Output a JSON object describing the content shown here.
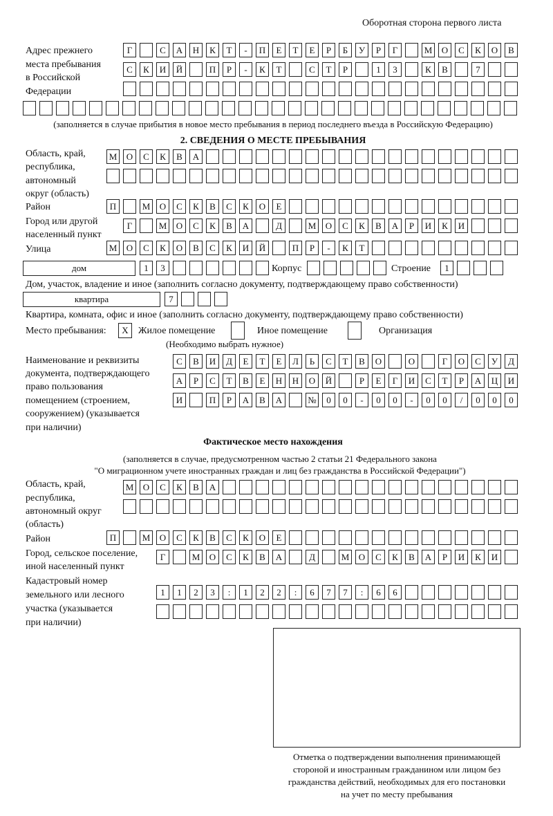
{
  "header": "Оборотная сторона первого листа",
  "prev_address": {
    "label": [
      "Адрес прежнего",
      "места пребывания",
      "в Российской",
      "Федерации"
    ],
    "rows": [
      [
        "Г",
        "",
        "С",
        "А",
        "Н",
        "К",
        "Т",
        "-",
        "П",
        "Е",
        "Т",
        "Е",
        "Р",
        "Б",
        "У",
        "Р",
        "Г",
        "",
        "М",
        "О",
        "С",
        "К",
        "О",
        "В"
      ],
      [
        "С",
        "К",
        "И",
        "Й",
        "",
        "П",
        "Р",
        "-",
        "К",
        "Т",
        "",
        "С",
        "Т",
        "Р",
        "",
        "1",
        "3",
        "",
        "К",
        "В",
        "",
        "7",
        "",
        ""
      ],
      [
        "",
        "",
        "",
        "",
        "",
        "",
        "",
        "",
        "",
        "",
        "",
        "",
        "",
        "",
        "",
        "",
        "",
        "",
        "",
        "",
        "",
        "",
        "",
        ""
      ],
      [
        "",
        "",
        "",
        "",
        "",
        "",
        "",
        "",
        "",
        "",
        "",
        "",
        "",
        "",
        "",
        "",
        "",
        "",
        "",
        "",
        "",
        "",
        "",
        "",
        "",
        "",
        "",
        "",
        "",
        ""
      ]
    ],
    "note": "(заполняется в случае прибытия в новое место пребывания в период последнего въезда в Российскую Федерацию)"
  },
  "section2": {
    "title": "2. СВЕДЕНИЯ О МЕСТЕ ПРЕБЫВАНИЯ",
    "region_label": [
      "Область, край,",
      "республика,",
      "автономный",
      "округ (область)"
    ],
    "region_rows": [
      [
        "М",
        "О",
        "С",
        "К",
        "В",
        "А",
        "",
        "",
        "",
        "",
        "",
        "",
        "",
        "",
        "",
        "",
        "",
        "",
        "",
        "",
        "",
        "",
        "",
        "",
        ""
      ],
      [
        "",
        "",
        "",
        "",
        "",
        "",
        "",
        "",
        "",
        "",
        "",
        "",
        "",
        "",
        "",
        "",
        "",
        "",
        "",
        "",
        "",
        "",
        "",
        "",
        ""
      ]
    ],
    "district_label": "Район",
    "district": [
      "П",
      "",
      "М",
      "О",
      "С",
      "К",
      "В",
      "С",
      "К",
      "О",
      "Е",
      "",
      "",
      "",
      "",
      "",
      "",
      "",
      "",
      "",
      "",
      "",
      "",
      "",
      ""
    ],
    "city_label": [
      "Город или другой",
      "населенный пункт"
    ],
    "city": [
      "Г",
      "",
      "М",
      "О",
      "С",
      "К",
      "В",
      "А",
      "",
      "Д",
      "",
      "М",
      "О",
      "С",
      "К",
      "В",
      "А",
      "Р",
      "И",
      "К",
      "И",
      "",
      "",
      ""
    ],
    "street_label": "Улица",
    "street": [
      "М",
      "О",
      "С",
      "К",
      "О",
      "В",
      "С",
      "К",
      "И",
      "Й",
      "",
      "П",
      "Р",
      "-",
      "К",
      "Т",
      "",
      "",
      "",
      "",
      "",
      "",
      "",
      "",
      ""
    ],
    "house_type": "дом",
    "house": [
      "1",
      "3",
      "",
      "",
      "",
      "",
      "",
      ""
    ],
    "korpus_label": "Корпус",
    "korpus": [
      "",
      "",
      "",
      "",
      ""
    ],
    "building_label": "Строение",
    "building": [
      "1",
      "",
      "",
      ""
    ],
    "house_note": "Дом, участок, владение и иное (заполнить согласно документу, подтверждающему право собственности)",
    "flat_type": "квартира",
    "flat": [
      "7",
      "",
      "",
      ""
    ],
    "flat_note": "Квартира, комната, офис и иное (заполнить согласно документу, подтверждающему право собственности)",
    "stay_label": "Место пребывания:",
    "options": [
      {
        "label": "Жилое помещение",
        "mark": "X"
      },
      {
        "label": "Иное помещение",
        "mark": ""
      },
      {
        "label": "Организация",
        "mark": ""
      }
    ],
    "choose_note": "(Необходимо выбрать нужное)",
    "doc_label": [
      "Наименование и реквизиты",
      "документа, подтверждающего",
      "право пользования",
      "помещением (строением,",
      "сооружением) (указывается",
      "при наличии)"
    ],
    "doc_rows": [
      [
        "С",
        "В",
        "И",
        "Д",
        "Е",
        "Т",
        "Е",
        "Л",
        "Ь",
        "С",
        "Т",
        "В",
        "О",
        "",
        "О",
        "",
        "Г",
        "О",
        "С",
        "У",
        "Д"
      ],
      [
        "А",
        "Р",
        "С",
        "Т",
        "В",
        "Е",
        "Н",
        "Н",
        "О",
        "Й",
        "",
        "Р",
        "Е",
        "Г",
        "И",
        "С",
        "Т",
        "Р",
        "А",
        "Ц",
        "И"
      ],
      [
        "И",
        "",
        "П",
        "Р",
        "А",
        "В",
        "А",
        "",
        "№",
        "0",
        "0",
        "-",
        "0",
        "0",
        "-",
        "0",
        "0",
        "/",
        "0",
        "0",
        "0"
      ]
    ]
  },
  "actual": {
    "title": "Фактическое место нахождения",
    "note": [
      "(заполняется в случае, предусмотренном частью 2 статьи 21 Федерального закона",
      "\"О миграционном учете иностранных граждан и лиц без гражданства в Российской Федерации\")"
    ],
    "region_label": [
      "Область, край,",
      "республика,",
      "автономный округ",
      "(область)"
    ],
    "region_rows": [
      [
        "М",
        "О",
        "С",
        "К",
        "В",
        "А",
        "",
        "",
        "",
        "",
        "",
        "",
        "",
        "",
        "",
        "",
        "",
        "",
        "",
        "",
        "",
        "",
        "",
        ""
      ],
      [
        "",
        "",
        "",
        "",
        "",
        "",
        "",
        "",
        "",
        "",
        "",
        "",
        "",
        "",
        "",
        "",
        "",
        "",
        "",
        "",
        "",
        "",
        "",
        ""
      ]
    ],
    "district_label": "Район",
    "district": [
      "П",
      "",
      "М",
      "О",
      "С",
      "К",
      "В",
      "С",
      "К",
      "О",
      "Е",
      "",
      "",
      "",
      "",
      "",
      "",
      "",
      "",
      "",
      "",
      "",
      "",
      "",
      ""
    ],
    "city_label": [
      "Город, сельское поселение,",
      "иной населенный пункт"
    ],
    "city": [
      "Г",
      "",
      "М",
      "О",
      "С",
      "К",
      "В",
      "А",
      "",
      "Д",
      "",
      "М",
      "О",
      "С",
      "К",
      "В",
      "А",
      "Р",
      "И",
      "К",
      "И",
      ""
    ],
    "cadastre_label": [
      "Кадастровый номер",
      "земельного или лесного",
      "участка (указывается",
      "при наличии)"
    ],
    "cadastre_rows": [
      [
        "1",
        "1",
        "2",
        "3",
        ":",
        "1",
        "2",
        "2",
        ":",
        "6",
        "7",
        "7",
        ":",
        "6",
        "6",
        "",
        "",
        "",
        "",
        "",
        "",
        ""
      ],
      [
        "",
        "",
        "",
        "",
        "",
        "",
        "",
        "",
        "",
        "",
        "",
        "",
        "",
        "",
        "",
        "",
        "",
        "",
        "",
        "",
        "",
        ""
      ]
    ]
  },
  "stamp": {
    "caption": [
      "Отметка о подтверждении выполнения принимающей",
      "стороной и иностранным гражданином или лицом без",
      "гражданства действий, необходимых для его постановки",
      "на учет по месту пребывания"
    ]
  }
}
